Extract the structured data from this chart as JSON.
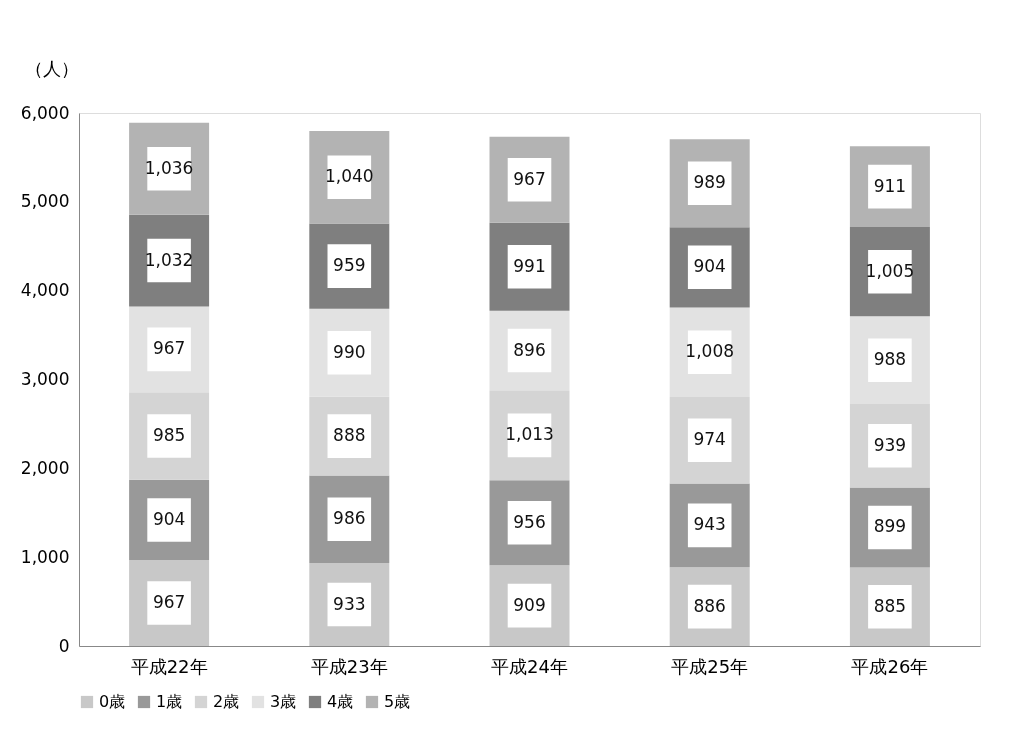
{
  "chart_data": {
    "type": "bar",
    "stacked": true,
    "ylabel": "（人）",
    "categories": [
      "平成22年",
      "平成23年",
      "平成24年",
      "平成25年",
      "平成26年"
    ],
    "series": [
      {
        "name": "0歳",
        "color": "#c8c8c8",
        "values": [
          967,
          933,
          909,
          886,
          885
        ],
        "value_labels": [
          "967",
          "933",
          "909",
          "886",
          "885"
        ]
      },
      {
        "name": "1歳",
        "color": "#999999",
        "values": [
          904,
          986,
          956,
          943,
          899
        ],
        "value_labels": [
          "904",
          "986",
          "956",
          "943",
          "899"
        ]
      },
      {
        "name": "2歳",
        "color": "#d4d4d4",
        "values": [
          985,
          888,
          1013,
          974,
          939
        ],
        "value_labels": [
          "985",
          "888",
          "1,013",
          "974",
          "939"
        ]
      },
      {
        "name": "3歳",
        "color": "#e2e2e2",
        "values": [
          967,
          990,
          896,
          1008,
          988
        ],
        "value_labels": [
          "967",
          "990",
          "896",
          "1,008",
          "988"
        ]
      },
      {
        "name": "4歳",
        "color": "#7f7f7f",
        "values": [
          1032,
          959,
          991,
          904,
          1005
        ],
        "value_labels": [
          "1,032",
          "959",
          "991",
          "904",
          "1,005"
        ]
      },
      {
        "name": "5歳",
        "color": "#b3b3b3",
        "values": [
          1036,
          1040,
          967,
          989,
          911
        ],
        "value_labels": [
          "1,036",
          "1,040",
          "967",
          "989",
          "911"
        ]
      }
    ],
    "ylim": [
      0,
      6000
    ],
    "yticks": [
      0,
      {
        "value": 1000,
        "label": "1,000"
      },
      {
        "value": 2000,
        "label": "2,000"
      },
      {
        "value": 3000,
        "label": "3,000"
      },
      {
        "value": 4000,
        "label": "4,000"
      },
      {
        "value": 5000,
        "label": "5,000"
      },
      {
        "value": 6000,
        "label": "6,000"
      }
    ],
    "grid": false,
    "legend": "bottom"
  }
}
